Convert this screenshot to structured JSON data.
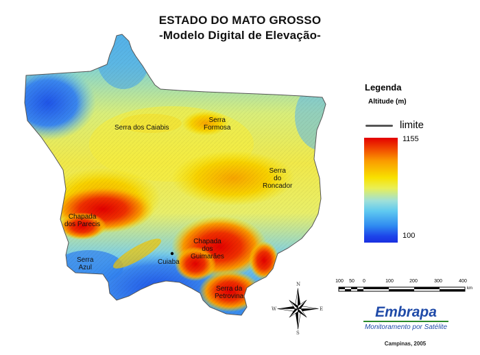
{
  "title": {
    "line1": "ESTADO DO MATO GROSSO",
    "line2": "-Modelo Digital de Elevação-"
  },
  "places": {
    "serra_caiabis": "Serra dos Caiabis",
    "serra_formosa_1": "Serra",
    "serra_formosa_2": "Formosa",
    "serra_roncador_1": "Serra",
    "serra_roncador_2": "do",
    "serra_roncador_3": "Roncador",
    "chapada_parecis_1": "Chapada",
    "chapada_parecis_2": "dos Parecis",
    "serra_azul_1": "Serra",
    "serra_azul_2": "Azul",
    "cuiaba": "Cuiaba",
    "chapada_guimaraes_1": "Chapada",
    "chapada_guimaraes_2": "dos",
    "chapada_guimaraes_3": "Guimarães",
    "serra_petrovina_1": "Serra da",
    "serra_petrovina_2": "Petrovina"
  },
  "legend": {
    "title": "Legenda",
    "subtitle": "Altitude (m)",
    "limite_label": "limite",
    "max": "1155",
    "min": "100"
  },
  "scale": {
    "labels": [
      "100",
      "50",
      "0",
      "100",
      "200",
      "300",
      "400"
    ],
    "unit": "km"
  },
  "compass": {
    "n": "N",
    "s": "S",
    "e": "E",
    "w": "W"
  },
  "logo": {
    "name": "Embrapa",
    "subtitle": "Monitoramento por Satélite"
  },
  "credit": "Campinas, 2005",
  "colors": {
    "high": "#e30000",
    "mid": "#f8e100",
    "low": "#1a2fe0",
    "brand_blue": "#1f4aa8"
  }
}
